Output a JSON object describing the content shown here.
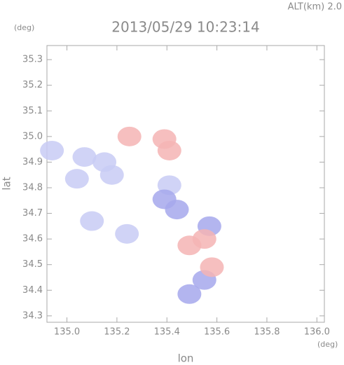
{
  "chart_data": {
    "type": "scatter",
    "title": "2013/05/29 10:23:14",
    "subtitle": "ALT(km) 2.0",
    "x_label": "lon",
    "y_label": "lat",
    "x_unit": "(deg)",
    "y_unit": "(deg)",
    "xlim": [
      134.92,
      136.03
    ],
    "ylim": [
      34.275,
      35.355
    ],
    "xticks": [
      {
        "value": 135.0,
        "label": "135.0"
      },
      135.2,
      135.4,
      135.6,
      135.8,
      {
        "value": 136.0,
        "label": "136.0"
      }
    ],
    "yticks": [
      34.3,
      34.4,
      34.5,
      34.6,
      34.7,
      34.8,
      34.9,
      {
        "value": 35.0,
        "label": "35.0"
      },
      35.1,
      35.2,
      35.3
    ],
    "series": [
      {
        "color": "#c8cbf4",
        "x": [
          135.07,
          135.15,
          135.18,
          135.04,
          134.94,
          135.1,
          135.24,
          135.41
        ],
        "y": [
          34.92,
          34.9,
          34.85,
          34.835,
          34.945,
          34.67,
          34.62,
          34.81
        ]
      },
      {
        "color": "#a6a8ec",
        "x": [
          135.39,
          135.44,
          135.55,
          135.49,
          135.57
        ],
        "y": [
          34.755,
          34.715,
          34.44,
          34.385,
          34.65
        ]
      },
      {
        "color": "#f5b4b4",
        "x": [
          135.39,
          135.41,
          135.25,
          135.55,
          135.58,
          135.49
        ],
        "y": [
          34.99,
          34.945,
          35.0,
          34.6,
          34.49,
          34.575
        ]
      }
    ]
  }
}
